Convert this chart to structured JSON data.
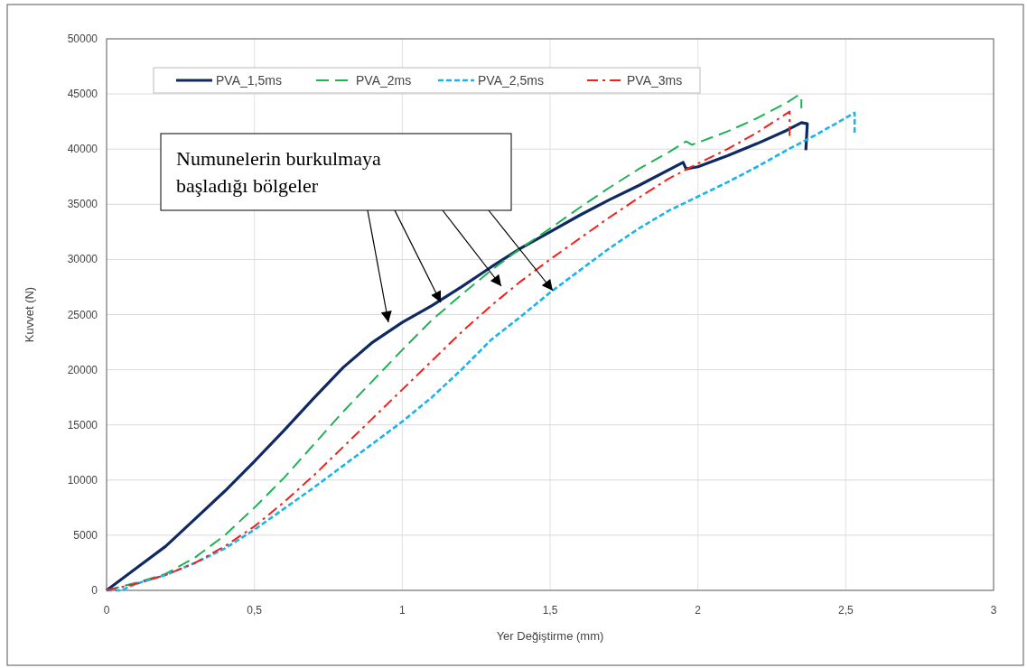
{
  "chart_data": {
    "type": "line",
    "xlabel": "Yer Değiştirme (mm)",
    "ylabel": "Kuvvet (N)",
    "xlim": [
      0,
      3
    ],
    "ylim": [
      0,
      50000
    ],
    "xticks": [
      0,
      {
        "value": 0.5,
        "label": "0,5"
      },
      1,
      {
        "value": 1.5,
        "label": "1,5"
      },
      2,
      {
        "value": 2.5,
        "label": "2,5"
      },
      3
    ],
    "yticks": [
      0,
      5000,
      10000,
      15000,
      20000,
      25000,
      30000,
      35000,
      40000,
      45000,
      50000
    ],
    "grid": true,
    "legend": "top",
    "annotations": [
      "Numunelerin burkulmaya başladığı bölgeler"
    ],
    "series": [
      {
        "name": "PVA_1,5ms",
        "color": "#0f2a63",
        "line_style": "solid",
        "x": [
          0,
          0.1,
          0.2,
          0.3,
          0.4,
          0.5,
          0.6,
          0.7,
          0.8,
          0.9,
          1.0,
          1.1,
          1.2,
          1.3,
          1.4,
          1.5,
          1.6,
          1.7,
          1.8,
          1.95,
          1.96,
          2.0,
          2.1,
          2.2,
          2.3,
          2.35,
          2.37,
          2.365
        ],
        "values": [
          0,
          2000,
          4000,
          6500,
          9000,
          11700,
          14500,
          17400,
          20200,
          22500,
          24300,
          25800,
          27500,
          29300,
          31000,
          32500,
          34000,
          35400,
          36700,
          38800,
          38200,
          38400,
          39400,
          40500,
          41700,
          42400,
          42300,
          39900
        ]
      },
      {
        "name": "PVA_2ms",
        "color": "#1fb254",
        "line_style": "dashed",
        "x": [
          0,
          0.1,
          0.2,
          0.3,
          0.4,
          0.5,
          0.6,
          0.7,
          0.8,
          0.9,
          1.0,
          1.1,
          1.2,
          1.3,
          1.4,
          1.5,
          1.6,
          1.7,
          1.8,
          1.9,
          1.96,
          1.98,
          2.1,
          2.2,
          2.3,
          2.34,
          2.35,
          2.35
        ],
        "values": [
          0,
          700,
          1500,
          3000,
          5000,
          7500,
          10200,
          13200,
          16200,
          19000,
          21800,
          24500,
          26800,
          29000,
          31000,
          32800,
          34700,
          36500,
          38200,
          39700,
          40700,
          40400,
          41600,
          42800,
          44200,
          44900,
          44700,
          43700
        ]
      },
      {
        "name": "PVA_2,5ms",
        "color": "#1ab3ee",
        "line_style": "dotted",
        "x": [
          0,
          0.05,
          0.1,
          0.2,
          0.3,
          0.4,
          0.5,
          0.6,
          0.7,
          0.8,
          0.9,
          1.0,
          1.1,
          1.2,
          1.3,
          1.4,
          1.5,
          1.6,
          1.7,
          1.8,
          1.9,
          2.0,
          2.1,
          2.2,
          2.3,
          2.4,
          2.53,
          2.53
        ],
        "values": [
          0,
          0,
          600,
          1400,
          2500,
          3800,
          5500,
          7400,
          9300,
          11300,
          13300,
          15300,
          17500,
          20000,
          22700,
          24800,
          27000,
          29000,
          31000,
          32800,
          34400,
          35700,
          37000,
          38400,
          39900,
          41300,
          43300,
          41300
        ]
      },
      {
        "name": "PVA_3ms",
        "color": "#f5201c",
        "line_style": "dashdot",
        "x": [
          0,
          0.1,
          0.2,
          0.3,
          0.4,
          0.5,
          0.6,
          0.7,
          0.8,
          0.9,
          1.0,
          1.1,
          1.2,
          1.3,
          1.4,
          1.5,
          1.6,
          1.7,
          1.8,
          1.9,
          2.0,
          2.1,
          2.2,
          2.31,
          2.31
        ],
        "values": [
          0,
          600,
          1400,
          2500,
          4000,
          5800,
          8000,
          10400,
          13000,
          15600,
          18200,
          20800,
          23400,
          25800,
          28000,
          30000,
          31900,
          33800,
          35600,
          37300,
          38700,
          40000,
          41500,
          43400,
          41200
        ]
      }
    ]
  }
}
